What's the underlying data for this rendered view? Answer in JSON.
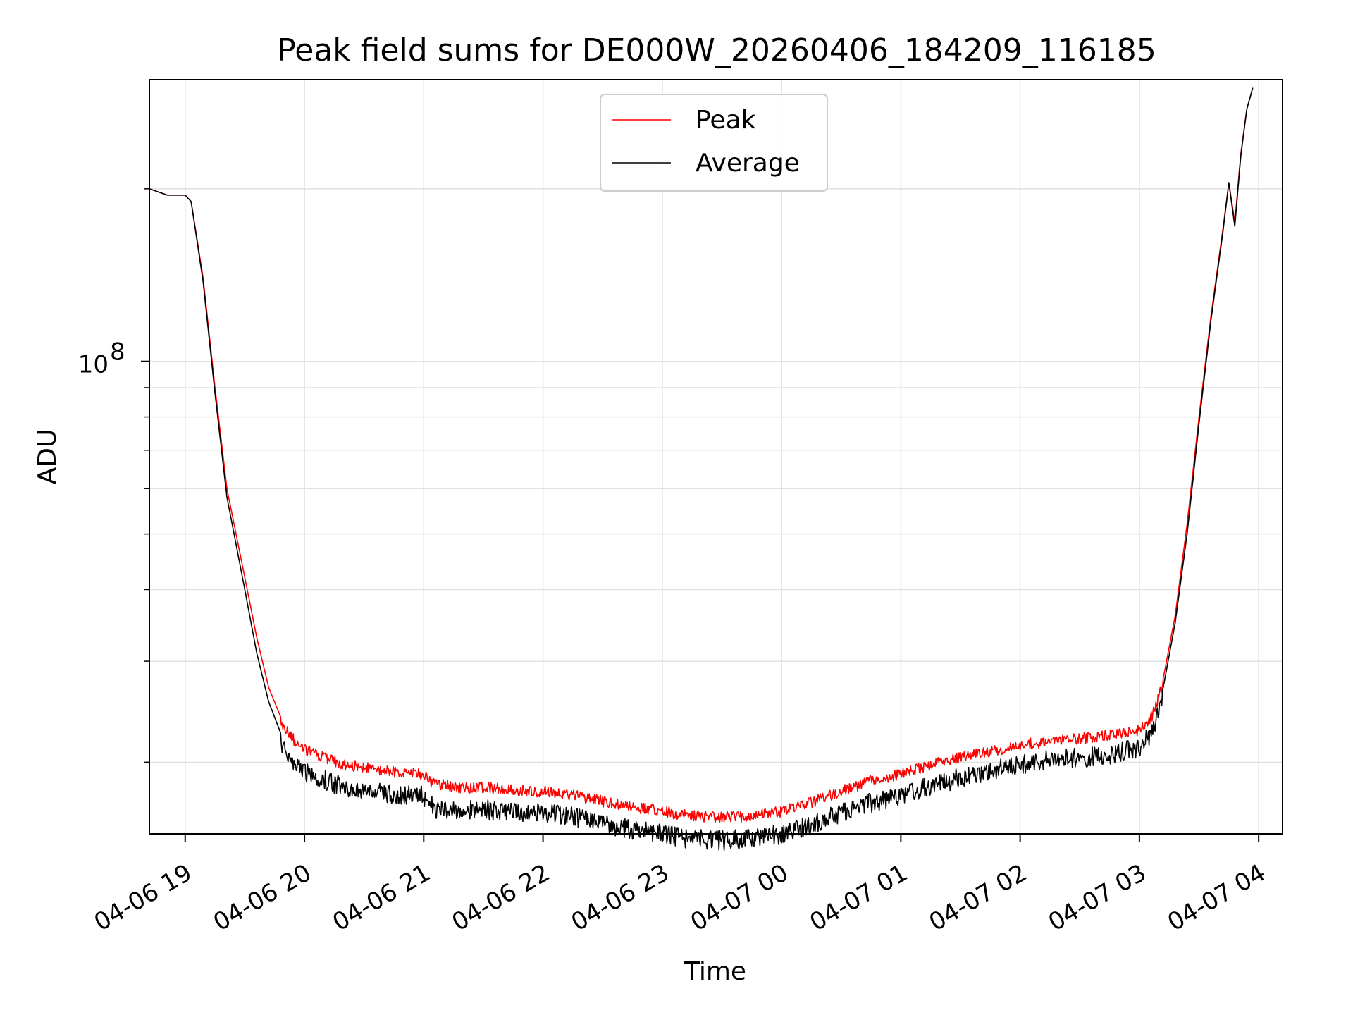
{
  "chart_data": {
    "type": "line",
    "title": "Peak field sums for DE000W_20260406_184209_116185",
    "xlabel": "Time",
    "ylabel": "ADU",
    "yscale": "log",
    "ylim": [
      15000000,
      310000000
    ],
    "xlim_hours": [
      18.7,
      28.2
    ],
    "grid": true,
    "legend_position": "upper center",
    "x_ticks": [
      {
        "hour": 19,
        "label": "04-06 19"
      },
      {
        "hour": 20,
        "label": "04-06 20"
      },
      {
        "hour": 21,
        "label": "04-06 21"
      },
      {
        "hour": 22,
        "label": "04-06 22"
      },
      {
        "hour": 23,
        "label": "04-06 23"
      },
      {
        "hour": 24,
        "label": "04-07 00"
      },
      {
        "hour": 25,
        "label": "04-07 01"
      },
      {
        "hour": 26,
        "label": "04-07 02"
      },
      {
        "hour": 27,
        "label": "04-07 03"
      },
      {
        "hour": 28,
        "label": "04-07 04"
      }
    ],
    "y_major_ticks": [
      {
        "value": 100000000,
        "base": "10",
        "exp": "8"
      }
    ],
    "y_minor_ticks": [
      20000000,
      30000000,
      40000000,
      50000000,
      60000000,
      70000000,
      80000000,
      90000000,
      200000000
    ],
    "series": [
      {
        "name": "Peak",
        "color": "#ff0000",
        "hours": [
          18.7,
          18.85,
          19.0,
          19.05,
          19.15,
          19.25,
          19.35,
          19.5,
          19.6,
          19.7,
          19.8,
          19.9,
          20.0,
          20.25,
          20.5,
          20.75,
          21.0,
          21.05,
          21.1,
          21.25,
          21.5,
          21.75,
          22.0,
          22.25,
          22.5,
          22.75,
          23.0,
          23.25,
          23.5,
          23.75,
          24.0,
          24.25,
          24.5,
          24.75,
          25.0,
          25.25,
          25.5,
          25.75,
          26.0,
          26.25,
          26.5,
          26.75,
          27.0,
          27.1,
          27.2,
          27.3,
          27.4,
          27.5,
          27.6,
          27.7,
          27.75,
          27.8,
          27.85,
          27.9,
          27.95
        ],
        "values": [
          200000000,
          195000000,
          195000000,
          190000000,
          140000000,
          90000000,
          60000000,
          42000000,
          33000000,
          27000000,
          24000000,
          22500000,
          21500000,
          20500000,
          20000000,
          19700000,
          19500000,
          19000000,
          18800000,
          18500000,
          18500000,
          18300000,
          18200000,
          17900000,
          17500000,
          17100000,
          16800000,
          16500000,
          16400000,
          16500000,
          16800000,
          17400000,
          18200000,
          19000000,
          19500000,
          20200000,
          20900000,
          21400000,
          21900000,
          22300000,
          22500000,
          22800000,
          23300000,
          24500000,
          28000000,
          36000000,
          52000000,
          80000000,
          120000000,
          170000000,
          205000000,
          175000000,
          230000000,
          275000000,
          300000000
        ]
      },
      {
        "name": "Average",
        "color": "#000000",
        "hours": [
          18.7,
          18.85,
          19.0,
          19.05,
          19.15,
          19.25,
          19.35,
          19.5,
          19.6,
          19.7,
          19.8,
          19.9,
          20.0,
          20.25,
          20.5,
          20.75,
          21.0,
          21.05,
          21.1,
          21.25,
          21.5,
          21.75,
          22.0,
          22.25,
          22.5,
          22.75,
          23.0,
          23.25,
          23.5,
          23.75,
          24.0,
          24.25,
          24.5,
          24.75,
          25.0,
          25.25,
          25.5,
          25.75,
          26.0,
          26.25,
          26.5,
          26.75,
          27.0,
          27.1,
          27.2,
          27.3,
          27.4,
          27.5,
          27.6,
          27.7,
          27.75,
          27.8,
          27.85,
          27.9,
          27.95
        ],
        "values": [
          200000000,
          195000000,
          195000000,
          190000000,
          138000000,
          88000000,
          58000000,
          40000000,
          31000000,
          25500000,
          22500000,
          21000000,
          20000000,
          19100000,
          18600000,
          18300000,
          18200000,
          17600000,
          17300000,
          17100000,
          17200000,
          17100000,
          17000000,
          16700000,
          16300000,
          15900000,
          15600000,
          15300000,
          15200000,
          15300000,
          15600000,
          16200000,
          17000000,
          17700000,
          18200000,
          18900000,
          19600000,
          20100000,
          20600000,
          21000000,
          21200000,
          21500000,
          22100000,
          23300000,
          27000000,
          35000000,
          50000000,
          78000000,
          118000000,
          168000000,
          205000000,
          172000000,
          228000000,
          275000000,
          300000000
        ]
      }
    ]
  }
}
